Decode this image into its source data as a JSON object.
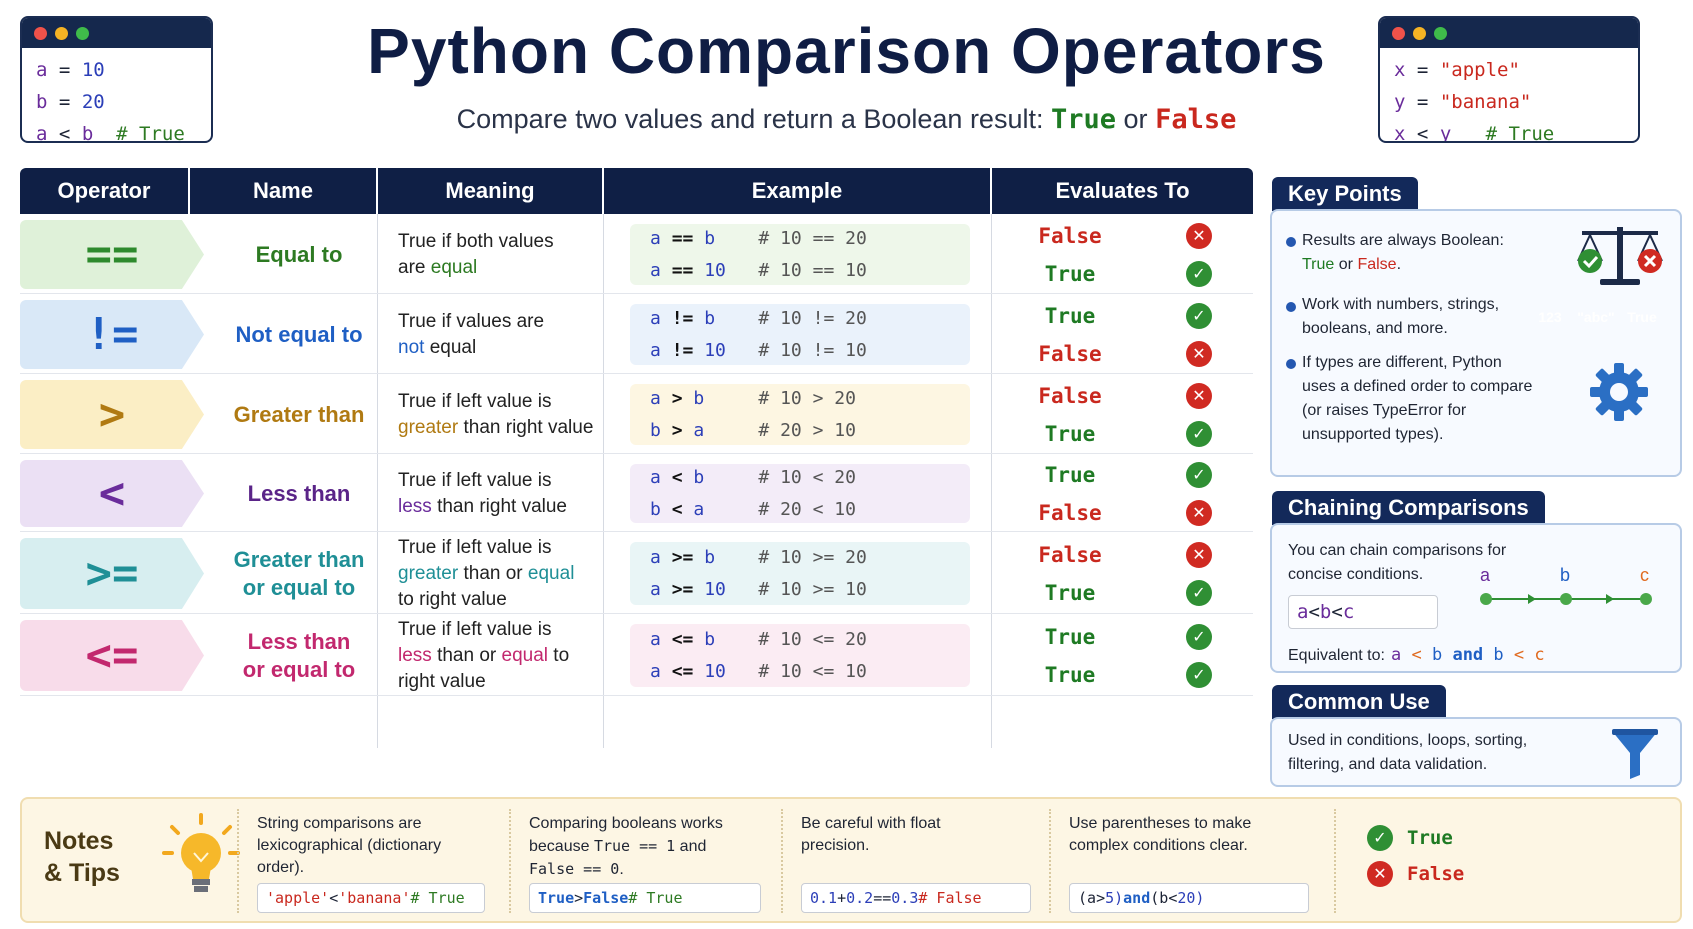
{
  "title": "Python Comparison Operators",
  "subtitle": {
    "text": "Compare two values and return a Boolean result:",
    "true_word": "True",
    "or_word": "or",
    "false_word": "False"
  },
  "code_left": [
    {
      "a": "a",
      "op": "=",
      "b": "10",
      "comment": ""
    },
    {
      "a": "b",
      "op": "=",
      "b": "20",
      "comment": ""
    },
    {
      "a": "a",
      "op": "<",
      "b": "b",
      "comment": "# True"
    }
  ],
  "code_right": [
    {
      "a": "x",
      "op": "=",
      "b": "\"apple\"",
      "comment": ""
    },
    {
      "a": "y",
      "op": "=",
      "b": "\"banana\"",
      "comment": ""
    },
    {
      "a": "x",
      "op": "<",
      "b": "y",
      "comment": "# True"
    }
  ],
  "table": {
    "headers": [
      "Operator",
      "Name",
      "Meaning",
      "Example",
      "Evaluates To"
    ],
    "rows": [
      {
        "operator": "==",
        "name": "Equal to",
        "meaning": "True if both values",
        "meaning2": "are ",
        "meaning_hl": "equal",
        "examples": [
          {
            "l": "a",
            "op": "==",
            "r": "b",
            "comment": "# 10 == 20",
            "result": "False"
          },
          {
            "l": "a",
            "op": "==",
            "r": "10",
            "comment": "# 10 == 10",
            "result": "True"
          }
        ],
        "colors": {
          "bg": "#dff1d9",
          "fg": "#2d8a2d",
          "ex": "#eef7ea",
          "name": "#2d7a22",
          "hl": "#2d7a22"
        }
      },
      {
        "operator": "!=",
        "name": "Not equal to",
        "meaning": "True if values are",
        "meaning2": "",
        "meaning_hl": "not",
        "meaning3": " equal",
        "examples": [
          {
            "l": "a",
            "op": "!=",
            "r": "b",
            "comment": "# 10 != 20",
            "result": "True"
          },
          {
            "l": "a",
            "op": "!=",
            "r": "10",
            "comment": "# 10 != 10",
            "result": "False"
          }
        ],
        "colors": {
          "bg": "#d9e8f7",
          "fg": "#1f5fc4",
          "ex": "#eaf2fb",
          "name": "#1f5fc4",
          "hl": "#1f5fc4"
        }
      },
      {
        "operator": ">",
        "name": "Greater than",
        "meaning": "True if left value is",
        "meaning_hl": "greater",
        "meaning3": " than right value",
        "examples": [
          {
            "l": "a",
            "op": ">",
            "r": "b",
            "comment": "# 10 > 20",
            "result": "False"
          },
          {
            "l": "b",
            "op": ">",
            "r": "a",
            "comment": "# 20 > 10",
            "result": "True"
          }
        ],
        "colors": {
          "bg": "#fbeec5",
          "fg": "#b07a12",
          "ex": "#fdf6e2",
          "name": "#b07a12",
          "hl": "#b07a12"
        }
      },
      {
        "operator": "<",
        "name": "Less than",
        "meaning": "True if left value is",
        "meaning_hl": "less",
        "meaning3": " than right value",
        "examples": [
          {
            "l": "a",
            "op": "<",
            "r": "b",
            "comment": "# 10 < 20",
            "result": "True"
          },
          {
            "l": "b",
            "op": "<",
            "r": "a",
            "comment": "# 20 < 10",
            "result": "False"
          }
        ],
        "colors": {
          "bg": "#ebe0f4",
          "fg": "#6a2c9b",
          "ex": "#f3ecf8",
          "name": "#5a2488",
          "hl": "#6a2c9b"
        }
      },
      {
        "operator": ">=",
        "name": "Greater than",
        "name2": "or equal to",
        "meaning": "True if left value is",
        "meaning_hl": "greater",
        "meaning_mid": " than or ",
        "meaning_hl2": "equal",
        "meaning_end": "to right value",
        "examples": [
          {
            "l": "a",
            "op": ">=",
            "r": "b",
            "comment": "# 10 >= 20",
            "result": "False"
          },
          {
            "l": "a",
            "op": ">=",
            "r": "10",
            "comment": "# 10 >= 10",
            "result": "True"
          }
        ],
        "colors": {
          "bg": "#d7eef0",
          "fg": "#1f8f96",
          "ex": "#e9f5f6",
          "name": "#1f8f96",
          "hl": "#1f8f96"
        }
      },
      {
        "operator": "<=",
        "name": "Less than",
        "name2": "or equal to",
        "meaning": "True if left value is",
        "meaning_hl": "less",
        "meaning_mid": " than or ",
        "meaning_hl2": "equal",
        "meaning_mid2": " to",
        "meaning_end": "right value",
        "examples": [
          {
            "l": "a",
            "op": "<=",
            "r": "b",
            "comment": "# 10 <= 20",
            "result": "True"
          },
          {
            "l": "a",
            "op": "<=",
            "r": "10",
            "comment": "# 10 <= 10",
            "result": "True"
          }
        ],
        "colors": {
          "bg": "#f8dcea",
          "fg": "#c2286e",
          "ex": "#fbecf3",
          "name": "#c2286e",
          "hl": "#c2286e"
        }
      }
    ]
  },
  "key_points": {
    "title": "Key Points",
    "items": [
      {
        "text": "Results are always Boolean:",
        "text2_true": "True",
        "text2_or": " or ",
        "text2_false": "False",
        "text2_end": "."
      },
      {
        "text": "Work with numbers, strings,",
        "text2": "booleans, and more."
      },
      {
        "text": "If types are different, Python",
        "text2": "uses a defined order to compare",
        "text3": "(or raises TypeError for",
        "text4": "unsupported types)."
      }
    ],
    "chips": [
      {
        "label": "123",
        "color": "#2b6fc4"
      },
      {
        "label": "\"abc\"",
        "color": "#e98a1f"
      },
      {
        "label": "True",
        "color": "#3e9a3a"
      }
    ]
  },
  "chaining": {
    "title": "Chaining Comparisons",
    "desc1": "You can chain comparisons for",
    "desc2": "concise conditions.",
    "code": {
      "a": "a",
      "op1": "<",
      "b": "b",
      "op2": "<",
      "c": "c"
    },
    "diagram_labels": [
      "a",
      "b",
      "c"
    ],
    "equivalent_label": "Equivalent to:",
    "equivalent": {
      "a": "a",
      "op1": "<",
      "b": "b",
      "and": "and",
      "b2": "b",
      "op2": "<",
      "c": "c"
    }
  },
  "common_use": {
    "title": "Common Use",
    "line1": "Used in conditions, loops, sorting,",
    "line2": "filtering, and data validation."
  },
  "notes": {
    "title1": "Notes",
    "title2": "& Tips",
    "cols": [
      {
        "l1": "String comparisons are",
        "l2": "lexicographical (dictionary",
        "l3": "order).",
        "code": {
          "a": "'apple'",
          "op": "<",
          "b": "'banana'",
          "comment": "# True"
        }
      },
      {
        "l1": "Comparing booleans works",
        "l2a": "because ",
        "l2code": "True == 1",
        "l2b": " and",
        "l3code": "False == 0",
        "l3b": ".",
        "code": {
          "a": "True",
          "op": ">",
          "b": "False",
          "comment": "# True"
        }
      },
      {
        "l1": "Be careful with float",
        "l2": "precision.",
        "code": {
          "a": "0.1",
          "op": "+",
          "b": "0.2",
          "op2": "==",
          "c": "0.3",
          "comment": "# False"
        }
      },
      {
        "l1": "Use parentheses to make",
        "l2": "complex conditions clear.",
        "code": {
          "p1": "(a",
          "op1": ">",
          "n1": "5)",
          "and": "and",
          "p2": "(b",
          "op2": "<",
          "n2": "20)"
        }
      }
    ],
    "legend_true": "True",
    "legend_false": "False"
  }
}
